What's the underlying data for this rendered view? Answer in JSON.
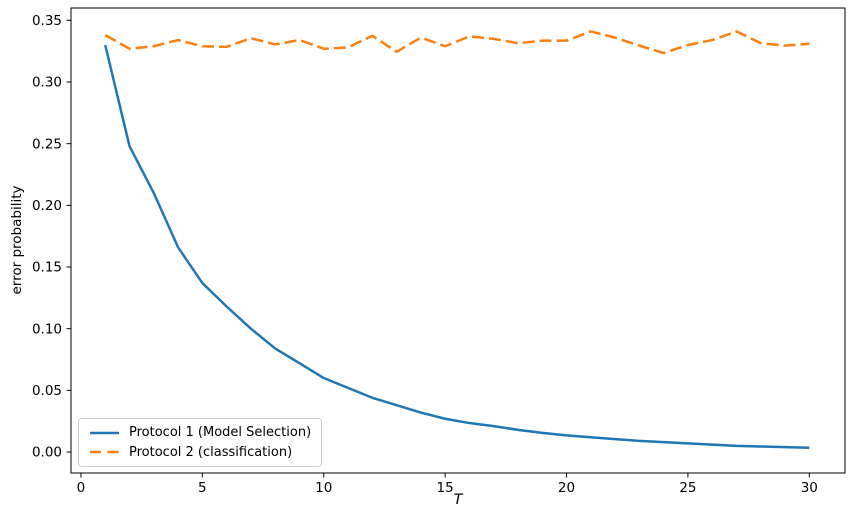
{
  "chart_data": {
    "type": "line",
    "xlabel": "T",
    "ylabel": "error probability",
    "x": [
      1,
      2,
      3,
      4,
      5,
      6,
      7,
      8,
      9,
      10,
      11,
      12,
      13,
      14,
      15,
      16,
      17,
      18,
      19,
      20,
      21,
      22,
      23,
      24,
      25,
      26,
      27,
      28,
      29,
      30
    ],
    "series": [
      {
        "name": "Protocol 1 (Model Selection)",
        "color": "#1f77b4",
        "style": "solid",
        "values": [
          0.33,
          0.248,
          0.21,
          0.166,
          0.137,
          0.118,
          0.1,
          0.084,
          0.072,
          0.06,
          0.052,
          0.044,
          0.038,
          0.032,
          0.027,
          0.0235,
          0.021,
          0.018,
          0.0155,
          0.0135,
          0.012,
          0.0105,
          0.009,
          0.008,
          0.007,
          0.006,
          0.005,
          0.0045,
          0.004,
          0.0035
        ]
      },
      {
        "name": "Protocol 2 (classification)",
        "color": "#ff7f0e",
        "style": "dashed",
        "values": [
          0.338,
          0.327,
          0.329,
          0.334,
          0.329,
          0.3285,
          0.3355,
          0.3305,
          0.334,
          0.327,
          0.328,
          0.3375,
          0.3245,
          0.336,
          0.329,
          0.337,
          0.335,
          0.3315,
          0.3335,
          0.3335,
          0.341,
          0.336,
          0.3295,
          0.3235,
          0.33,
          0.334,
          0.341,
          0.3315,
          0.3295,
          0.331
        ]
      }
    ],
    "xlim": [
      -0.41,
      31.47
    ],
    "ylim": [
      -0.017,
      0.36
    ],
    "xticks": [
      0,
      5,
      10,
      15,
      20,
      25,
      30
    ],
    "xtick_labels": [
      "0",
      "5",
      "10",
      "15",
      "20",
      "25",
      "30"
    ],
    "yticks": [
      0.0,
      0.05,
      0.1,
      0.15,
      0.2,
      0.25,
      0.3,
      0.35
    ],
    "ytick_labels": [
      "0.00",
      "0.05",
      "0.10",
      "0.15",
      "0.20",
      "0.25",
      "0.30",
      "0.35"
    ],
    "grid": false,
    "legend_position": "lower left",
    "axis_color": "#000000",
    "background_color": "#ffffff"
  }
}
